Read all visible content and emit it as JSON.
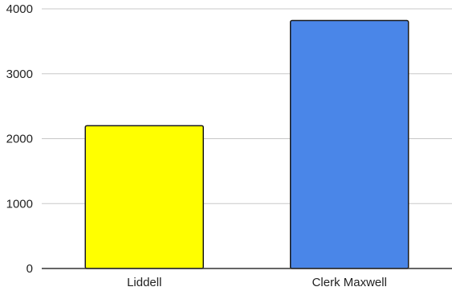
{
  "chart_data": {
    "type": "bar",
    "title": "",
    "xlabel": "",
    "ylabel": "",
    "categories": [
      "Liddell",
      "Clerk Maxwell"
    ],
    "values": [
      2200,
      3820
    ],
    "colors": [
      "#ffff00",
      "#4a86e8"
    ],
    "ylim": [
      0,
      4000
    ],
    "yticks": [
      0,
      1000,
      2000,
      3000,
      4000
    ],
    "grid": true,
    "legend": "none"
  }
}
